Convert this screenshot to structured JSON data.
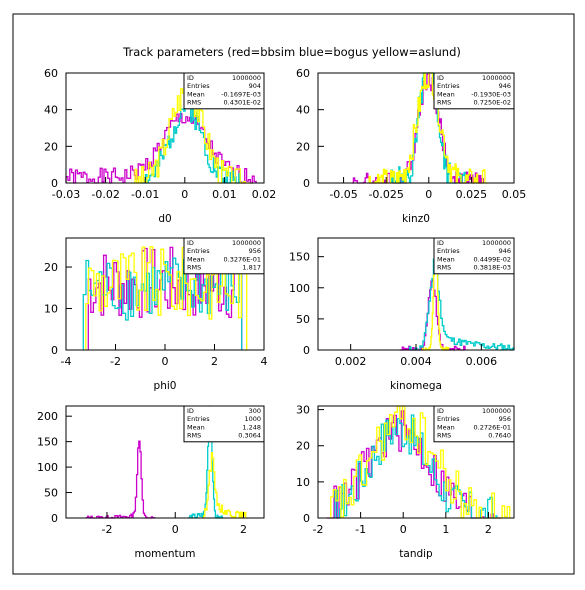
{
  "title": "Track parameters (red=bbsim blue=bogus yellow=aslund)",
  "colors": {
    "red_series": "#cc00cc",
    "blue_series": "#00cccc",
    "yellow_series": "#ffff00",
    "axes": "#000000"
  },
  "chart_data": [
    {
      "type": "histogram",
      "xlabel": "d0",
      "xlim": [
        -0.03,
        0.02
      ],
      "ylim": [
        0,
        60
      ],
      "xticks": [
        "-0.03",
        "-0.02",
        "-0.01",
        "0",
        "0.01",
        "0.02"
      ],
      "yticks": [
        "0",
        "20",
        "40",
        "60"
      ],
      "stats": [
        [
          "ID",
          "1000000"
        ],
        [
          "Entries",
          "904"
        ],
        [
          "Mean",
          "-0.1697E-03"
        ],
        [
          "RMS",
          "0.4301E-02"
        ]
      ],
      "series": [
        {
          "kind": "gauss",
          "color": "#cc00cc",
          "x0": -0.03,
          "x1": 0.018,
          "nbins": 100,
          "peak": 33,
          "mean": 0.0,
          "sigma": 0.0055,
          "base": 3,
          "noise": 5,
          "seed": 1
        },
        {
          "kind": "gauss",
          "color": "#00cccc",
          "x0": -0.011,
          "x1": 0.014,
          "nbins": 70,
          "peak": 42,
          "mean": 0.0005,
          "sigma": 0.004,
          "base": 0,
          "noise": 7,
          "seed": 2
        },
        {
          "kind": "gauss",
          "color": "#ffff00",
          "x0": -0.013,
          "x1": 0.017,
          "nbins": 70,
          "peak": 50,
          "mean": 0.0005,
          "sigma": 0.0042,
          "base": 0,
          "noise": 8,
          "seed": 3
        }
      ]
    },
    {
      "type": "histogram",
      "xlabel": "kinz0",
      "xlim": [
        -0.065,
        0.05
      ],
      "ylim": [
        0,
        60
      ],
      "xticks": [
        "-0.05",
        "-0.025",
        "0",
        "0.025",
        "0.05"
      ],
      "yticks": [
        "0",
        "20",
        "40",
        "60"
      ],
      "stats": [
        [
          "ID",
          "1000000"
        ],
        [
          "Entries",
          "946"
        ],
        [
          "Mean",
          "-0.1930E-03"
        ],
        [
          "RMS",
          "0.7250E-02"
        ]
      ],
      "series": [
        {
          "kind": "gauss",
          "color": "#cc00cc",
          "x0": -0.045,
          "x1": 0.032,
          "nbins": 100,
          "peak": 58,
          "mean": 0.0,
          "sigma": 0.006,
          "base": 0,
          "noise": 6,
          "seed": 4
        },
        {
          "kind": "gauss",
          "color": "#00cccc",
          "x0": -0.022,
          "x1": 0.022,
          "nbins": 70,
          "peak": 72,
          "mean": 0.0,
          "sigma": 0.0048,
          "base": 0,
          "noise": 9,
          "seed": 5
        },
        {
          "kind": "gauss",
          "color": "#ffff00",
          "x0": -0.035,
          "x1": 0.035,
          "nbins": 100,
          "peak": 60,
          "mean": 0.0,
          "sigma": 0.0065,
          "base": 0,
          "noise": 8,
          "seed": 6
        }
      ]
    },
    {
      "type": "histogram",
      "xlabel": "phi0",
      "xlim": [
        -4,
        4
      ],
      "ylim": [
        0,
        27
      ],
      "xticks": [
        "-4",
        "-2",
        "0",
        "2",
        "4"
      ],
      "yticks": [
        "0",
        "10",
        "20"
      ],
      "stats": [
        [
          "ID",
          "1000000"
        ],
        [
          "Entries",
          "956"
        ],
        [
          "Mean",
          "0.3276E-01"
        ],
        [
          "RMS",
          "1.817"
        ]
      ],
      "series": [
        {
          "kind": "flat",
          "color": "#cc00cc",
          "x0": -3.1,
          "x1": 3.1,
          "nbins": 60,
          "level": 16,
          "noise": 9,
          "seed": 7
        },
        {
          "kind": "flat",
          "color": "#00cccc",
          "x0": -3.3,
          "x1": 3.1,
          "nbins": 60,
          "level": 15,
          "noise": 8,
          "seed": 8
        },
        {
          "kind": "flat",
          "color": "#ffff00",
          "x0": -3.2,
          "x1": 3.3,
          "nbins": 60,
          "level": 16,
          "noise": 9,
          "seed": 9
        }
      ]
    },
    {
      "type": "histogram",
      "xlabel": "kinomega",
      "xlim": [
        0.001,
        0.007
      ],
      "ylim": [
        0,
        180
      ],
      "xticks": [
        "0.002",
        "0.004",
        "0.006"
      ],
      "yticks": [
        "0",
        "50",
        "100",
        "150"
      ],
      "stats": [
        [
          "ID",
          "1000000"
        ],
        [
          "Entries",
          "946"
        ],
        [
          "Mean",
          "0.4499E-02"
        ],
        [
          "RMS",
          "0.3818E-03"
        ]
      ],
      "series": [
        {
          "kind": "gauss",
          "color": "#cc00cc",
          "x0": 0.0035,
          "x1": 0.0055,
          "nbins": 50,
          "peak": 115,
          "mean": 0.0045,
          "sigma": 0.00012,
          "base": 0,
          "noise": 6,
          "seed": 10
        },
        {
          "kind": "skew",
          "color": "#00cccc",
          "x0": 0.0038,
          "x1": 0.007,
          "nbins": 70,
          "peak": 120,
          "mean": 0.00455,
          "sigma": 0.00015,
          "tail": 25,
          "taildecay": 0.0012,
          "noise": 6,
          "seed": 11
        },
        {
          "kind": "gauss",
          "color": "#ffff00",
          "x0": 0.0042,
          "x1": 0.005,
          "nbins": 40,
          "peak": 170,
          "mean": 0.0046,
          "sigma": 6e-05,
          "base": 0,
          "noise": 5,
          "seed": 12
        }
      ]
    },
    {
      "type": "histogram",
      "xlabel": "momentum",
      "xlim": [
        -3.2,
        2.6
      ],
      "ylim": [
        0,
        220
      ],
      "xticks": [
        "-2",
        "0",
        "2"
      ],
      "yticks": [
        "0",
        "50",
        "100",
        "150",
        "200"
      ],
      "stats": [
        [
          "ID",
          "300"
        ],
        [
          "Entries",
          "1000"
        ],
        [
          "Mean",
          "1.248"
        ],
        [
          "RMS",
          "0.3064"
        ]
      ],
      "series": [
        {
          "kind": "skewleft",
          "color": "#cc00cc",
          "x0": -2.6,
          "x1": -0.6,
          "nbins": 60,
          "peak": 150,
          "mean": -1.05,
          "sigma": 0.06,
          "tail": 6,
          "taildecay": 0.45,
          "noise": 4,
          "seed": 13
        },
        {
          "kind": "skewleft",
          "color": "#00cccc",
          "x0": 0.4,
          "x1": 1.4,
          "nbins": 40,
          "peak": 215,
          "mean": 1.02,
          "sigma": 0.06,
          "tail": 12,
          "taildecay": 0.3,
          "noise": 6,
          "seed": 14
        },
        {
          "kind": "skewright",
          "color": "#ffff00",
          "x0": 0.8,
          "x1": 2.1,
          "nbins": 40,
          "peak": 100,
          "mean": 1.05,
          "sigma": 0.08,
          "tail": 40,
          "taildecay": 0.4,
          "noise": 8,
          "seed": 15
        }
      ]
    },
    {
      "type": "histogram",
      "xlabel": "tandip",
      "xlim": [
        -2,
        2.6
      ],
      "ylim": [
        0,
        31
      ],
      "xticks": [
        "-2",
        "-1",
        "0",
        "1",
        "2"
      ],
      "yticks": [
        "0",
        "10",
        "20",
        "30"
      ],
      "stats": [
        [
          "ID",
          "1000000"
        ],
        [
          "Entries",
          "956"
        ],
        [
          "Mean",
          "0.2726E-01"
        ],
        [
          "RMS",
          "0.7640"
        ]
      ],
      "series": [
        {
          "kind": "gauss",
          "color": "#cc00cc",
          "x0": -1.8,
          "x1": 2.3,
          "nbins": 70,
          "peak": 24,
          "mean": -0.1,
          "sigma": 0.75,
          "base": 0,
          "noise": 6,
          "seed": 16
        },
        {
          "kind": "gauss",
          "color": "#00cccc",
          "x0": -1.6,
          "x1": 2.2,
          "nbins": 70,
          "peak": 25,
          "mean": -0.1,
          "sigma": 0.7,
          "base": 0,
          "noise": 6,
          "seed": 17
        },
        {
          "kind": "gauss",
          "color": "#ffff00",
          "x0": -1.7,
          "x1": 2.5,
          "nbins": 70,
          "peak": 27,
          "mean": 0.0,
          "sigma": 0.75,
          "base": 0,
          "noise": 7,
          "seed": 18
        }
      ]
    }
  ]
}
